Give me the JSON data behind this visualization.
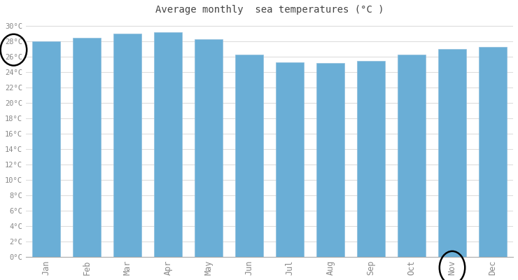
{
  "months": [
    "Jan",
    "Feb",
    "Mar",
    "Apr",
    "May",
    "Jun",
    "Jul",
    "Aug",
    "Sep",
    "Oct",
    "Nov",
    "Dec"
  ],
  "values": [
    28,
    28.5,
    29,
    29.2,
    28.3,
    26.3,
    25.3,
    25.2,
    25.5,
    26.3,
    27,
    27.3
  ],
  "bar_color": "#6aaed6",
  "bar_edge_color": "#90bedd",
  "title": "Average monthly  sea temperatures (°C )",
  "title_fontsize": 10,
  "ylim": [
    0,
    31
  ],
  "ytick_step": 2,
  "background_color": "#ffffff",
  "grid_color": "#dddddd",
  "tick_label_color": "#888888",
  "circled_month_index": 10,
  "circled_ytick_values": [
    26,
    28
  ]
}
